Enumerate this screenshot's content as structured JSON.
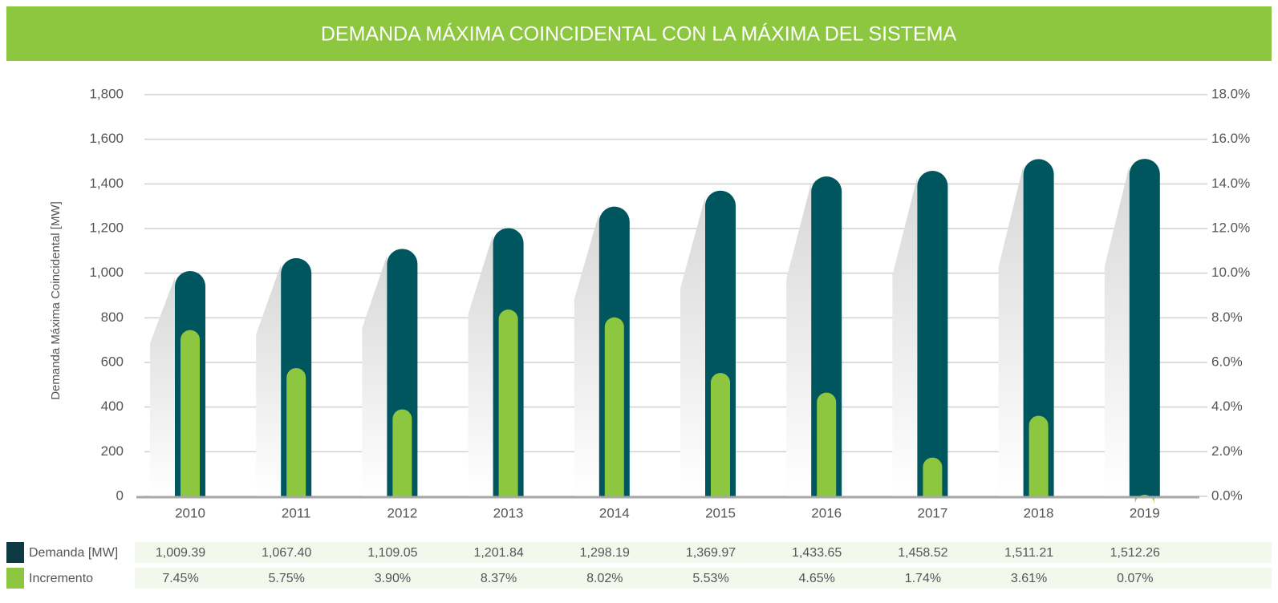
{
  "chart_data": {
    "type": "bar",
    "title": "DEMANDA MÁXIMA COINCIDENTAL CON LA MÁXIMA DEL SISTEMA",
    "y_label": "Demanda Máxima Coincidental [MW]",
    "categories": [
      "2010",
      "2011",
      "2012",
      "2013",
      "2014",
      "2015",
      "2016",
      "2017",
      "2018",
      "2019"
    ],
    "series": [
      {
        "name": "Demanda [MW]",
        "color": "#00565f",
        "legend_color": "#0e3b43",
        "values": [
          1009.39,
          1067.4,
          1109.05,
          1201.84,
          1298.19,
          1369.97,
          1433.65,
          1458.52,
          1511.21,
          1512.26
        ],
        "value_labels": [
          "1,009.39",
          "1,067.40",
          "1,109.05",
          "1,201.84",
          "1,298.19",
          "1,369.97",
          "1,433.65",
          "1,458.52",
          "1,511.21",
          "1,512.26"
        ]
      },
      {
        "name": "Incremento",
        "color": "#8dc63f",
        "axis": "y2",
        "values": [
          7.45,
          5.75,
          3.9,
          8.37,
          8.02,
          5.53,
          4.65,
          1.74,
          3.61,
          0.07
        ],
        "value_labels": [
          "7.45%",
          "5.75%",
          "3.90%",
          "8.37%",
          "8.02%",
          "5.53%",
          "4.65%",
          "1.74%",
          "3.61%",
          "0.07%"
        ]
      }
    ],
    "ylim": [
      0,
      1800
    ],
    "yticks": [
      0,
      200,
      400,
      600,
      800,
      {
        "value": 1000,
        "label": "1,000"
      },
      {
        "value": 1200,
        "label": "1,200"
      },
      {
        "value": 1400,
        "label": "1,400"
      },
      {
        "value": 1600,
        "label": "1,600"
      },
      {
        "value": 1800,
        "label": "1,800"
      }
    ],
    "y2lim": [
      0,
      18
    ],
    "y2ticks": [
      {
        "value": 0,
        "label": "0.0%"
      },
      {
        "value": 2,
        "label": "2.0%"
      },
      {
        "value": 4,
        "label": "4.0%"
      },
      {
        "value": 6,
        "label": "6.0%"
      },
      {
        "value": 8,
        "label": "8.0%"
      },
      {
        "value": 10,
        "label": "10.0%"
      },
      {
        "value": 12,
        "label": "12.0%"
      },
      {
        "value": 14,
        "label": "14.0%"
      },
      {
        "value": 16,
        "label": "16.0%"
      },
      {
        "value": 18,
        "label": "18.0%"
      }
    ],
    "grid": true
  }
}
